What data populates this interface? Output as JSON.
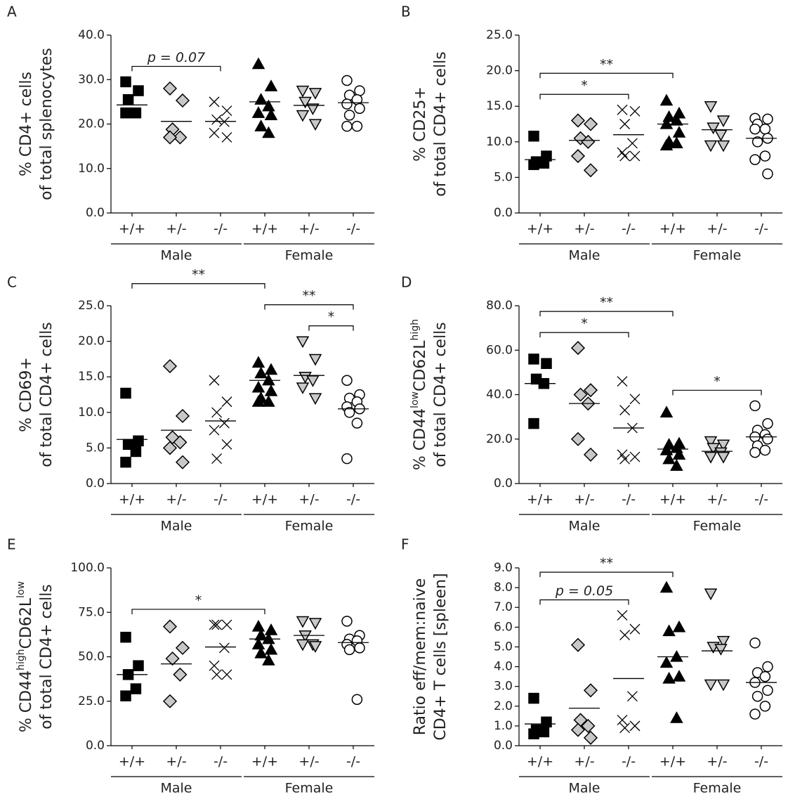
{
  "chart_data": [
    {
      "type": "dot",
      "panel": "A",
      "ylabel": [
        [
          {
            "text": "% CD4+ cells"
          }
        ],
        [
          {
            "text": "of total splenocytes"
          }
        ]
      ],
      "ylim": [
        0,
        40
      ],
      "yticks": [
        {
          "value": 0,
          "label": "0.0"
        },
        {
          "value": 10,
          "label": "10.0"
        },
        {
          "value": 20,
          "label": "20.0"
        },
        {
          "value": 30,
          "label": "30.0"
        },
        {
          "value": 40,
          "label": "40.0"
        }
      ],
      "groups": [
        "Male",
        "Female"
      ],
      "series": [
        {
          "name": "+/+",
          "marker": "square",
          "color": "#000000",
          "values": [
            29.5,
            27.5,
            25.5,
            22.5,
            22.5
          ],
          "mean": 24.3
        },
        {
          "name": "+/-",
          "marker": "diamond",
          "color": "#c8c8c8",
          "values": [
            28,
            25.3,
            18.8,
            17,
            17
          ],
          "mean": 20.6
        },
        {
          "name": "-/-",
          "marker": "cross",
          "color": "#000000",
          "values": [
            25,
            23,
            21,
            20.5,
            18,
            17
          ],
          "mean": 20.6
        },
        {
          "name": "+/+",
          "marker": "triangle",
          "color": "#000000",
          "values": [
            33.5,
            28.5,
            25.5,
            24,
            22.5,
            22,
            19.5,
            18
          ],
          "mean": 25
        },
        {
          "name": "+/-",
          "marker": "triangle-down",
          "color": "#c8c8c8",
          "values": [
            27.5,
            27,
            25,
            23.5,
            22,
            20
          ],
          "mean": 24.2
        },
        {
          "name": "-/-",
          "marker": "circle",
          "color": "#ffffff",
          "values": [
            29.8,
            27.5,
            26.5,
            25.5,
            24.5,
            23.5,
            22,
            19.5,
            19.5
          ],
          "mean": 24.8
        }
      ],
      "annotations": [
        {
          "text": "p = 0.07",
          "from": 0,
          "to": 2,
          "italic": true
        }
      ]
    },
    {
      "type": "dot",
      "panel": "B",
      "ylabel": [
        [
          {
            "text": "% CD25+"
          }
        ],
        [
          {
            "text": "of total CD4+ cells"
          }
        ]
      ],
      "ylim": [
        0,
        25
      ],
      "yticks": [
        {
          "value": 0,
          "label": "0.0"
        },
        {
          "value": 5,
          "label": "5.0"
        },
        {
          "value": 10,
          "label": "10.0"
        },
        {
          "value": 15,
          "label": "15.0"
        },
        {
          "value": 20,
          "label": "20.0"
        },
        {
          "value": 25,
          "label": "25.0"
        }
      ],
      "groups": [
        "Male",
        "Female"
      ],
      "series": [
        {
          "name": "+/+",
          "marker": "square",
          "color": "#000000",
          "values": [
            10.8,
            8,
            7.2,
            7,
            6.8
          ],
          "mean": 7.5
        },
        {
          "name": "+/-",
          "marker": "diamond",
          "color": "#c8c8c8",
          "values": [
            13,
            12.5,
            10.5,
            10,
            8,
            6
          ],
          "mean": 10.2
        },
        {
          "name": "-/-",
          "marker": "cross",
          "color": "#000000",
          "values": [
            14.5,
            14.3,
            12.5,
            9.8,
            8.5,
            8,
            8
          ],
          "mean": 11
        },
        {
          "name": "+/+",
          "marker": "triangle",
          "color": "#000000",
          "values": [
            15.8,
            14,
            13.5,
            13,
            12.5,
            11.3,
            10,
            9.8,
            9.5
          ],
          "mean": 12.5
        },
        {
          "name": "+/-",
          "marker": "triangle-down",
          "color": "#c8c8c8",
          "values": [
            15,
            13,
            12,
            11,
            9.5,
            9.5
          ],
          "mean": 11.7
        },
        {
          "name": "-/-",
          "marker": "circle",
          "color": "#ffffff",
          "values": [
            13.3,
            13.2,
            12.5,
            11.8,
            11.8,
            10.5,
            10,
            8,
            7.5,
            5.5
          ],
          "mean": 10.5
        }
      ],
      "annotations": [
        {
          "text": "*",
          "from": 0,
          "to": 2
        },
        {
          "text": "**",
          "from": 0,
          "to": 3
        }
      ]
    },
    {
      "type": "dot",
      "panel": "C",
      "ylabel": [
        [
          {
            "text": "% CD69+"
          }
        ],
        [
          {
            "text": "of total CD4+ cells"
          }
        ]
      ],
      "ylim": [
        0,
        25
      ],
      "yticks": [
        {
          "value": 0,
          "label": "0.0"
        },
        {
          "value": 5,
          "label": "5.0"
        },
        {
          "value": 10,
          "label": "10.0"
        },
        {
          "value": 15,
          "label": "15.0"
        },
        {
          "value": 20,
          "label": "20.0"
        },
        {
          "value": 25,
          "label": "25.0"
        }
      ],
      "groups": [
        "Male",
        "Female"
      ],
      "series": [
        {
          "name": "+/+",
          "marker": "square",
          "color": "#000000",
          "values": [
            12.7,
            6,
            5.5,
            4.5,
            3
          ],
          "mean": 6.2
        },
        {
          "name": "+/-",
          "marker": "diamond",
          "color": "#c8c8c8",
          "values": [
            16.5,
            9.5,
            6.5,
            5.8,
            5,
            3
          ],
          "mean": 7.5
        },
        {
          "name": "-/-",
          "marker": "cross",
          "color": "#000000",
          "values": [
            14.5,
            11.5,
            10,
            8.5,
            7.5,
            5.5,
            3.5
          ],
          "mean": 8.8
        },
        {
          "name": "+/+",
          "marker": "triangle",
          "color": "#000000",
          "values": [
            17,
            16,
            15.5,
            14.5,
            13.5,
            13,
            12,
            11.5,
            11.5
          ],
          "mean": 14.5
        },
        {
          "name": "+/-",
          "marker": "triangle-down",
          "color": "#c8c8c8",
          "values": [
            20,
            17.5,
            15,
            14.5,
            13.5,
            12
          ],
          "mean": 15.2
        },
        {
          "name": "-/-",
          "marker": "circle",
          "color": "#ffffff",
          "values": [
            14.5,
            12.5,
            12,
            11.5,
            10.8,
            10.5,
            10,
            8.5,
            3.5
          ],
          "mean": 10.5
        }
      ],
      "annotations": [
        {
          "text": "**",
          "from": 0,
          "to": 3
        },
        {
          "text": "*",
          "from": 4,
          "to": 5
        },
        {
          "text": "**",
          "from": 3,
          "to": 5
        }
      ]
    },
    {
      "type": "dot",
      "panel": "D",
      "ylabel": [
        [
          {
            "text": "% CD44"
          },
          {
            "text": "low",
            "sup": true
          },
          {
            "text": "CD62L"
          },
          {
            "text": "high",
            "sup": true
          }
        ],
        [
          {
            "text": "of total CD4+ cells"
          }
        ]
      ],
      "ylim": [
        0,
        80
      ],
      "yticks": [
        {
          "value": 0,
          "label": "0.0"
        },
        {
          "value": 20,
          "label": "20.0"
        },
        {
          "value": 40,
          "label": "40.0"
        },
        {
          "value": 60,
          "label": "60.0"
        },
        {
          "value": 80,
          "label": "80.0"
        }
      ],
      "groups": [
        "Male",
        "Female"
      ],
      "series": [
        {
          "name": "+/+",
          "marker": "square",
          "color": "#000000",
          "values": [
            56,
            54,
            47,
            45,
            27
          ],
          "mean": 45
        },
        {
          "name": "+/-",
          "marker": "diamond",
          "color": "#c8c8c8",
          "values": [
            61,
            42,
            40,
            36,
            20,
            13
          ],
          "mean": 36
        },
        {
          "name": "-/-",
          "marker": "cross",
          "color": "#000000",
          "values": [
            46,
            38,
            33,
            25,
            13,
            12,
            11
          ],
          "mean": 25
        },
        {
          "name": "+/+",
          "marker": "triangle",
          "color": "#000000",
          "values": [
            32,
            18,
            17.5,
            16,
            15,
            13,
            11,
            8
          ],
          "mean": 15.5
        },
        {
          "name": "+/-",
          "marker": "triangle-down",
          "color": "#c8c8c8",
          "values": [
            19,
            17.5,
            16,
            14,
            12,
            12
          ],
          "mean": 14.5
        },
        {
          "name": "-/-",
          "marker": "circle",
          "color": "#ffffff",
          "values": [
            35,
            27,
            24,
            22,
            21,
            20,
            17,
            15,
            14
          ],
          "mean": 21
        }
      ],
      "annotations": [
        {
          "text": "*",
          "from": 0,
          "to": 2
        },
        {
          "text": "**",
          "from": 0,
          "to": 3
        },
        {
          "text": "*",
          "from": 3,
          "to": 5
        }
      ]
    },
    {
      "type": "dot",
      "panel": "E",
      "ylabel": [
        [
          {
            "text": "% CD44"
          },
          {
            "text": "high",
            "sup": true
          },
          {
            "text": "CD62L"
          },
          {
            "text": "low",
            "sup": true
          }
        ],
        [
          {
            "text": "of total CD4+ cells"
          }
        ]
      ],
      "ylim": [
        0,
        100
      ],
      "yticks": [
        {
          "value": 0,
          "label": "0.0"
        },
        {
          "value": 25,
          "label": "25.0"
        },
        {
          "value": 50,
          "label": "50.0"
        },
        {
          "value": 75,
          "label": "75.0"
        },
        {
          "value": 100,
          "label": "100.0"
        }
      ],
      "groups": [
        "Male",
        "Female"
      ],
      "series": [
        {
          "name": "+/+",
          "marker": "square",
          "color": "#000000",
          "values": [
            61,
            45,
            40,
            32,
            28
          ],
          "mean": 40
        },
        {
          "name": "+/-",
          "marker": "diamond",
          "color": "#c8c8c8",
          "values": [
            67,
            55,
            49,
            40,
            25
          ],
          "mean": 46
        },
        {
          "name": "-/-",
          "marker": "cross",
          "color": "#000000",
          "values": [
            68,
            68,
            68,
            55,
            45,
            40,
            40
          ],
          "mean": 55.5
        },
        {
          "name": "+/+",
          "marker": "triangle",
          "color": "#000000",
          "values": [
            67,
            65,
            62,
            60,
            57,
            54,
            52,
            48
          ],
          "mean": 60
        },
        {
          "name": "+/-",
          "marker": "triangle-down",
          "color": "#c8c8c8",
          "values": [
            70,
            69,
            62,
            57,
            57,
            56
          ],
          "mean": 62
        },
        {
          "name": "-/-",
          "marker": "circle",
          "color": "#ffffff",
          "values": [
            70,
            62,
            60,
            59,
            57,
            55,
            54,
            26
          ],
          "mean": 58
        }
      ],
      "annotations": [
        {
          "text": "*",
          "from": 0,
          "to": 3
        }
      ]
    },
    {
      "type": "dot",
      "panel": "F",
      "ylabel": [
        [
          {
            "text": "Ratio eff/mem:naive"
          }
        ],
        [
          {
            "text": "CD4+ T cells [spleen]"
          }
        ]
      ],
      "ylim": [
        0,
        9
      ],
      "yticks": [
        {
          "value": 0,
          "label": "0.0"
        },
        {
          "value": 1,
          "label": "1.0"
        },
        {
          "value": 2,
          "label": "2.0"
        },
        {
          "value": 3,
          "label": "3.0"
        },
        {
          "value": 4,
          "label": "4.0"
        },
        {
          "value": 5,
          "label": "5.0"
        },
        {
          "value": 6,
          "label": "6.0"
        },
        {
          "value": 7,
          "label": "7.0"
        },
        {
          "value": 8,
          "label": "8.0"
        },
        {
          "value": 9,
          "label": "9.0"
        }
      ],
      "groups": [
        "Male",
        "Female"
      ],
      "series": [
        {
          "name": "+/+",
          "marker": "square",
          "color": "#000000",
          "values": [
            2.4,
            1.2,
            0.8,
            0.7,
            0.6
          ],
          "mean": 1.1
        },
        {
          "name": "+/-",
          "marker": "diamond",
          "color": "#c8c8c8",
          "values": [
            5.1,
            2.8,
            1.3,
            1,
            0.8,
            0.4
          ],
          "mean": 1.9
        },
        {
          "name": "-/-",
          "marker": "cross",
          "color": "#000000",
          "values": [
            6.6,
            5.9,
            5.6,
            2.5,
            1.3,
            1,
            0.9
          ],
          "mean": 3.4
        },
        {
          "name": "+/+",
          "marker": "triangle",
          "color": "#000000",
          "values": [
            8,
            6,
            5.8,
            4.5,
            4.2,
            3.5,
            3.4,
            1.4
          ],
          "mean": 4.5
        },
        {
          "name": "+/-",
          "marker": "triangle-down",
          "color": "#c8c8c8",
          "values": [
            7.7,
            5.3,
            5,
            4.9,
            3.1,
            3.1
          ],
          "mean": 4.8
        },
        {
          "name": "-/-",
          "marker": "circle",
          "color": "#ffffff",
          "values": [
            5.2,
            4,
            3.7,
            3.5,
            3.2,
            2.8,
            2.5,
            2,
            1.6
          ],
          "mean": 3.2
        }
      ],
      "annotations": [
        {
          "text": "p = 0.05",
          "from": 0,
          "to": 2,
          "italic": true
        },
        {
          "text": "**",
          "from": 0,
          "to": 3
        }
      ]
    }
  ]
}
